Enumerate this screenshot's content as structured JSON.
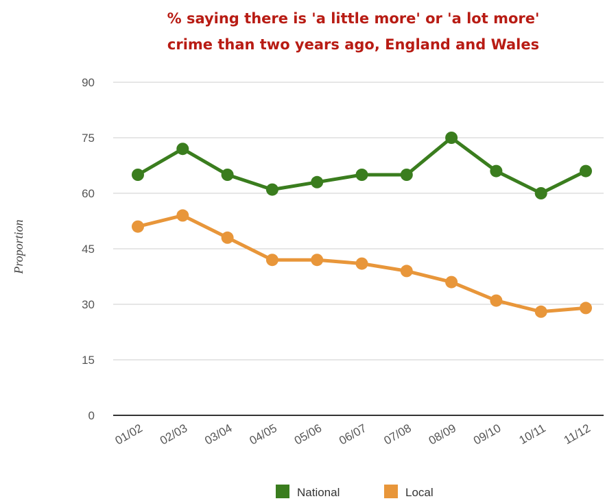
{
  "chart_data": {
    "type": "line",
    "title_line1": "% saying there is 'a little more' or 'a lot more'",
    "title_line2": "crime than two years ago, England and Wales",
    "ylabel": "Proportion",
    "xlabel": "",
    "categories": [
      "01/02",
      "02/03",
      "03/04",
      "04/05",
      "05/06",
      "06/07",
      "07/08",
      "08/09",
      "09/10",
      "10/11",
      "11/12"
    ],
    "ylim": [
      0,
      90
    ],
    "yticks": [
      "0",
      "15",
      "30",
      "45",
      "60",
      "75",
      "90"
    ],
    "grid": true,
    "legend_position": "bottom",
    "series": [
      {
        "name": "National",
        "color": "#3a7d1e",
        "values": [
          65,
          72,
          65,
          61,
          63,
          65,
          65,
          75,
          66,
          60,
          66
        ]
      },
      {
        "name": "Local",
        "color": "#e8963a",
        "values": [
          51,
          54,
          48,
          42,
          42,
          41,
          39,
          36,
          31,
          28,
          29
        ]
      }
    ]
  }
}
